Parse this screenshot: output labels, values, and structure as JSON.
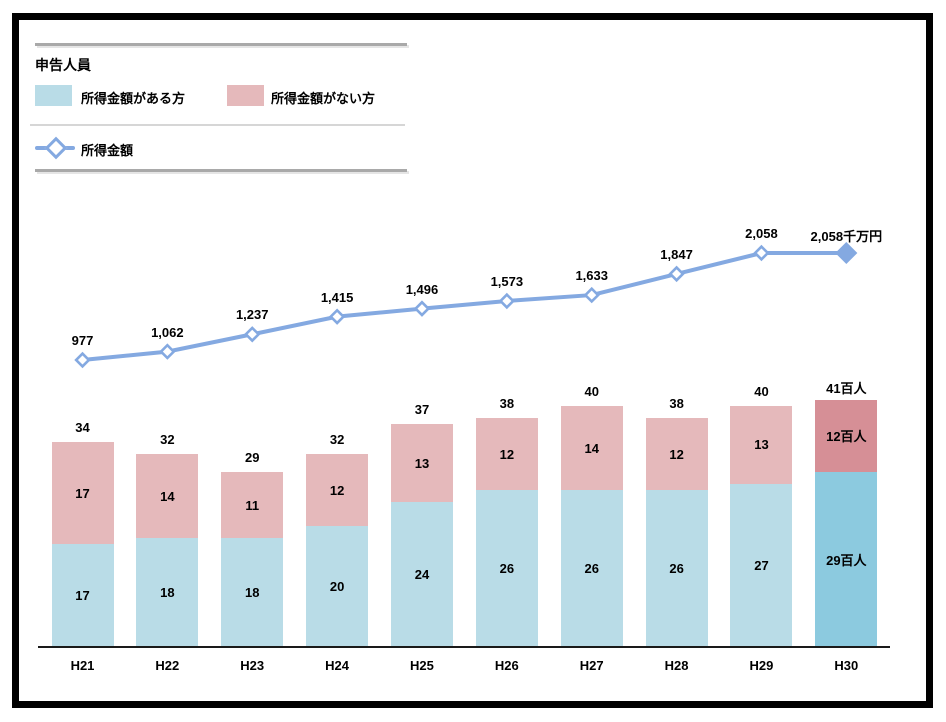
{
  "legend": {
    "title": "申告人員",
    "items": [
      {
        "label": "所得金額がある方",
        "color": "#b9dce7"
      },
      {
        "label": "所得金額がない方",
        "color": "#e5b9bb"
      }
    ],
    "line_item": {
      "label": "所得金額",
      "color": "#84a9e1"
    }
  },
  "chart_data": {
    "type": "bar",
    "subtype": "stacked-bar-with-line",
    "title": "申告人員",
    "categories": [
      "H21",
      "H22",
      "H23",
      "H24",
      "H25",
      "H26",
      "H27",
      "H28",
      "H29",
      "H30"
    ],
    "series": [
      {
        "name": "所得金額がある方",
        "type": "bar",
        "color": "#b9dce7",
        "highlight_color": "#8ccadf",
        "values": [
          17,
          18,
          18,
          20,
          24,
          26,
          26,
          26,
          27,
          29
        ],
        "labels": [
          "17",
          "18",
          "18",
          "20",
          "24",
          "26",
          "26",
          "26",
          "27",
          "29百人"
        ]
      },
      {
        "name": "所得金額がない方",
        "type": "bar",
        "color": "#e5b9bb",
        "highlight_color": "#d68f96",
        "values": [
          17,
          14,
          11,
          12,
          13,
          12,
          14,
          12,
          13,
          12
        ],
        "labels": [
          "17",
          "14",
          "11",
          "12",
          "13",
          "12",
          "14",
          "12",
          "13",
          "12百人"
        ]
      },
      {
        "name": "所得金額",
        "type": "line",
        "color": "#84a9e1",
        "values": [
          977,
          1062,
          1237,
          1415,
          1496,
          1573,
          1633,
          1847,
          2058,
          2058
        ],
        "labels": [
          "977",
          "1,062",
          "1,237",
          "1,415",
          "1,496",
          "1,573",
          "1,633",
          "1,847",
          "2,058",
          "2,058千万円"
        ]
      }
    ],
    "totals": [
      "34",
      "32",
      "29",
      "32",
      "37",
      "38",
      "40",
      "38",
      "40",
      "41百人"
    ],
    "highlight_index": 9,
    "bar_unit": "百人",
    "line_unit": "千万円",
    "xlabel": "",
    "ylabel": "",
    "grid": false,
    "legend_position": "top-left"
  }
}
